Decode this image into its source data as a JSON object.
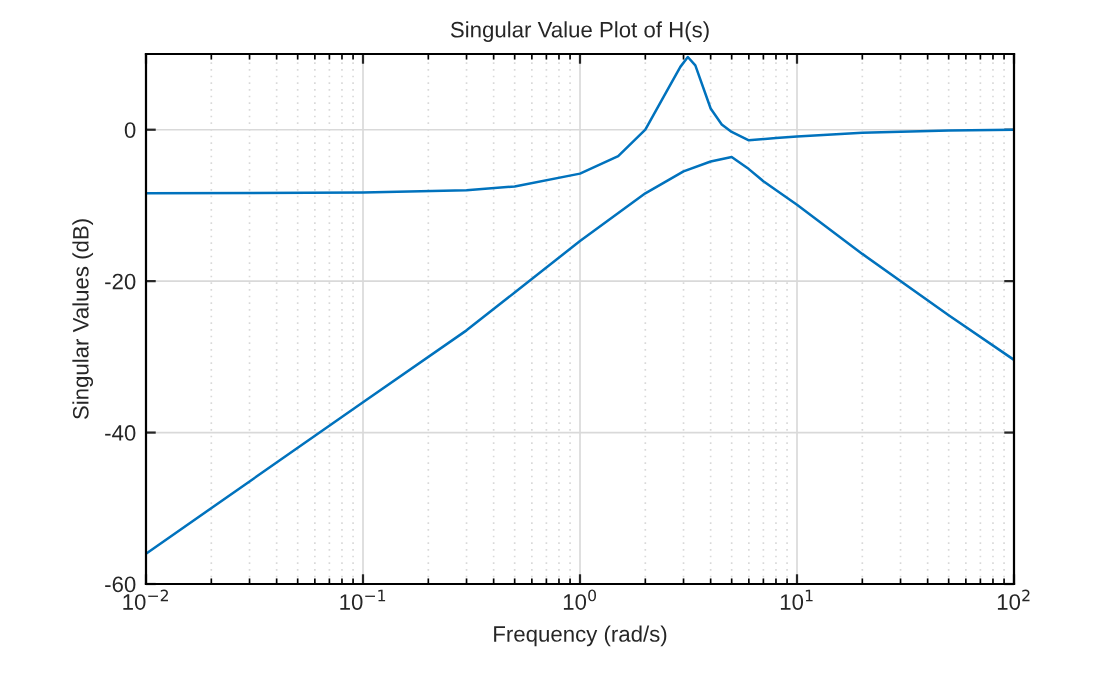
{
  "chart_data": {
    "type": "line",
    "title": "Singular Value Plot of H(s)",
    "xlabel": "Frequency (rad/s)",
    "ylabel": "Singular Values (dB)",
    "log": "x",
    "grid": true,
    "xlim": [
      0.01,
      100
    ],
    "ylim": [
      -60,
      10
    ],
    "xticks": [
      {
        "value": 0.01,
        "label": "10$^{−2}$"
      },
      {
        "value": 0.1,
        "label": "10$^{−1}$"
      },
      {
        "value": 1,
        "label": "10$^{0}$"
      },
      {
        "value": 10,
        "label": "10$^{1}$"
      },
      {
        "value": 100,
        "label": "10$^{2}$"
      }
    ],
    "yticks": [
      -60,
      -40,
      -20,
      0
    ],
    "series": [
      {
        "color": "#0072bd",
        "x": [
          0.01,
          0.1,
          0.3,
          0.5,
          1,
          1.5,
          2,
          2.5,
          2.9,
          3.14,
          3.4,
          4,
          4.5,
          5,
          6,
          8,
          10,
          20,
          50,
          100
        ],
        "values": [
          -8.4,
          -8.3,
          -8.0,
          -7.5,
          -5.8,
          -3.5,
          0,
          5,
          8.3,
          9.6,
          8.5,
          2.8,
          0.7,
          -0.3,
          -1.4,
          -1.1,
          -0.9,
          -0.4,
          -0.1,
          0
        ]
      },
      {
        "color": "#0072bd",
        "x": [
          0.01,
          0.1,
          0.3,
          0.5,
          1,
          2,
          3,
          4,
          5,
          6,
          7,
          10,
          20,
          50,
          100
        ],
        "values": [
          -56,
          -36,
          -26.5,
          -21.5,
          -14.7,
          -8.4,
          -5.5,
          -4.2,
          -3.6,
          -5.2,
          -6.8,
          -9.9,
          -16.4,
          -24.5,
          -30.4
        ]
      }
    ]
  }
}
